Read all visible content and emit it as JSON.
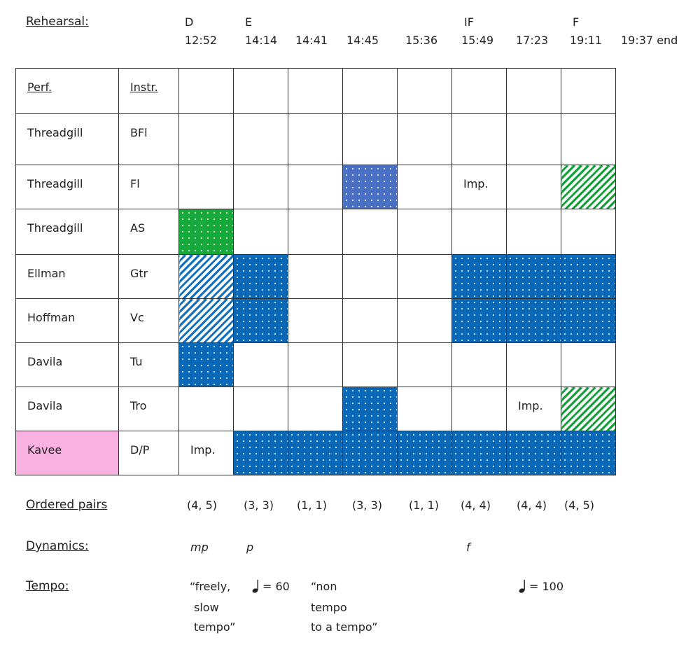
{
  "labels": {
    "rehearsal": "Rehearsal:",
    "ordered_pairs": "Ordered pairs",
    "dynamics": "Dynamics:",
    "tempo": "Tempo:"
  },
  "header": {
    "marks": [
      "D",
      "E",
      "IF",
      "F"
    ],
    "times": [
      "12:52",
      "14:14",
      "14:41",
      "14:45",
      "15:36",
      "15:49",
      "17:23",
      "19:11",
      "19:37 end"
    ]
  },
  "table": {
    "col_headers": [
      "Perf.",
      "Instr."
    ],
    "rows": [
      {
        "performer": "Threadgill",
        "instrument": "BFl",
        "cells": [
          "",
          "",
          "",
          "",
          "",
          "",
          "",
          ""
        ]
      },
      {
        "performer": "Threadgill",
        "instrument": "Fl",
        "cells": [
          "",
          "",
          "",
          "",
          "",
          "Imp.",
          "",
          ""
        ]
      },
      {
        "performer": "Threadgill",
        "instrument": "AS",
        "cells": [
          "",
          "",
          "",
          "",
          "",
          "",
          "",
          ""
        ]
      },
      {
        "performer": "Ellman",
        "instrument": "Gtr",
        "cells": [
          "",
          "",
          "",
          "",
          "",
          "",
          "",
          ""
        ]
      },
      {
        "performer": "Hoffman",
        "instrument": "Vc",
        "cells": [
          "",
          "",
          "",
          "",
          "",
          "",
          "",
          ""
        ]
      },
      {
        "performer": "Davila",
        "instrument": "Tu",
        "cells": [
          "",
          "",
          "",
          "",
          "",
          "",
          "",
          ""
        ]
      },
      {
        "performer": "Davila",
        "instrument": "Tro",
        "cells": [
          "",
          "",
          "",
          "",
          "",
          "",
          "Imp.",
          ""
        ]
      },
      {
        "performer": "Kavee",
        "instrument": "D/P",
        "cells": [
          "Imp.",
          "",
          "",
          "",
          "",
          "",
          "",
          ""
        ]
      }
    ],
    "fills": [
      [
        "none",
        "none",
        "none",
        "none",
        "none",
        "none",
        "none",
        "none"
      ],
      [
        "none",
        "none",
        "none",
        "dot-lblue",
        "none",
        "none",
        "none",
        "hatch-green"
      ],
      [
        "dot-green",
        "none",
        "none",
        "none",
        "none",
        "none",
        "none",
        "none"
      ],
      [
        "hatch-blue",
        "dot-blue",
        "none",
        "none",
        "none",
        "dot-blue",
        "dot-blue",
        "dot-blue"
      ],
      [
        "hatch-blue",
        "dot-blue",
        "none",
        "none",
        "none",
        "dot-blue",
        "dot-blue",
        "dot-blue"
      ],
      [
        "dot-blue",
        "none",
        "none",
        "none",
        "none",
        "none",
        "none",
        "none"
      ],
      [
        "none",
        "none",
        "none",
        "dot-blue",
        "none",
        "none",
        "none",
        "hatch-green"
      ],
      [
        "none",
        "dot-blue",
        "dot-blue",
        "dot-blue",
        "dot-blue",
        "dot-blue",
        "dot-blue",
        "dot-blue"
      ]
    ],
    "performer_highlight": {
      "row": 7,
      "color": "#f9b1e2"
    }
  },
  "ordered_pairs": [
    "(4, 5)",
    "(3, 3)",
    "(1, 1)",
    "(3, 3)",
    "(1, 1)",
    "(4, 4)",
    "(4, 4)",
    "(4, 5)"
  ],
  "dynamics": [
    "mp",
    "p",
    "f"
  ],
  "tempo": {
    "t1": [
      "“freely,",
      "slow",
      "tempo”"
    ],
    "t2": "= 60",
    "t3": [
      "“non",
      "tempo",
      "to a tempo”"
    ],
    "t4": "= 100"
  }
}
